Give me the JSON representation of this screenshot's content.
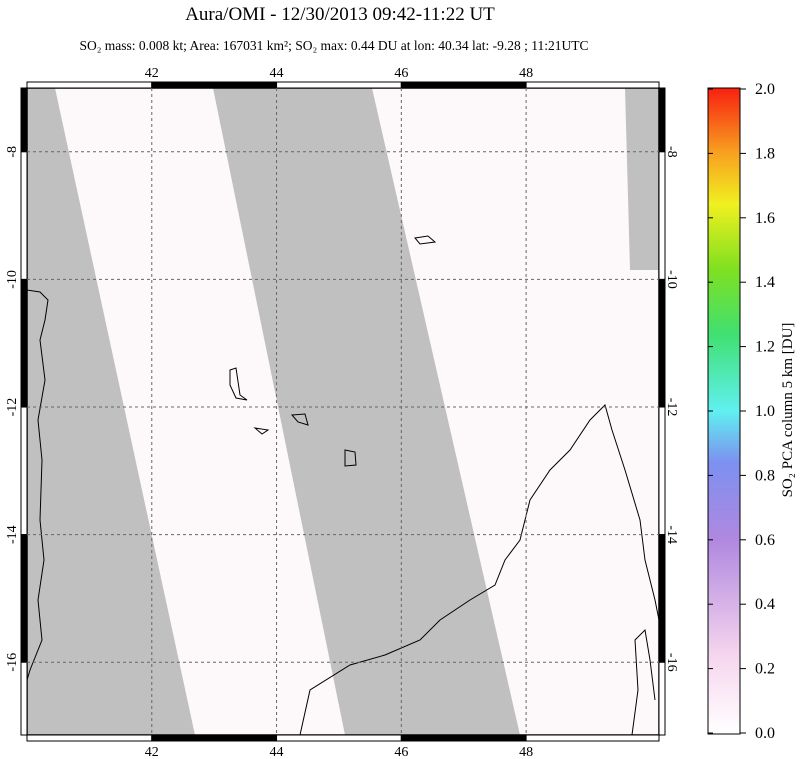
{
  "header": {
    "title": "Aura/OMI - 12/30/2013 09:42-11:22 UT",
    "subtitle": "SO₂ mass: 0.008 kt; Area: 167031 km²; SO₂ max: 0.44 DU at lon: 40.34 lat: -9.28 ; 11:21UTC"
  },
  "map": {
    "lon_range": [
      40,
      50.13
    ],
    "lat_range": [
      -7,
      -17.14
    ],
    "lon_ticks": [
      42,
      44,
      46,
      48
    ],
    "lat_ticks": [
      -8,
      -10,
      -12,
      -14,
      -16
    ]
  },
  "colorbar": {
    "label": "SO₂ PCA column 5 km [DU]",
    "range": [
      0,
      2
    ],
    "ticks": [
      {
        "value": 0,
        "label": "0.0"
      },
      {
        "value": 0.2,
        "label": "0.2"
      },
      {
        "value": 0.4,
        "label": "0.4"
      },
      {
        "value": 0.6,
        "label": "0.6"
      },
      {
        "value": 0.8,
        "label": "0.8"
      },
      {
        "value": 1,
        "label": "1.0"
      },
      {
        "value": 1.2,
        "label": "1.2"
      },
      {
        "value": 1.4,
        "label": "1.4"
      },
      {
        "value": 1.6,
        "label": "1.6"
      },
      {
        "value": 1.8,
        "label": "1.8"
      },
      {
        "value": 2,
        "label": "2.0"
      }
    ]
  }
}
